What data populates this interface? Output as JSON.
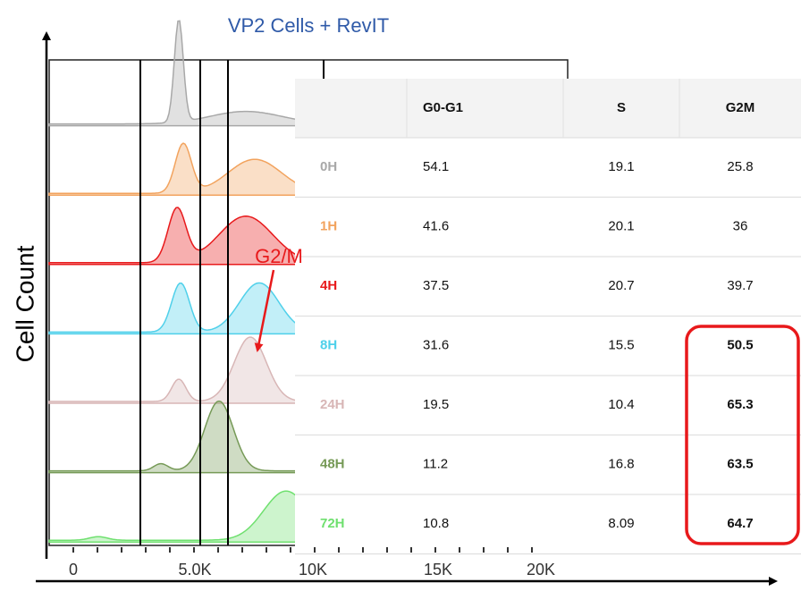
{
  "title": "VP2 Cells + RevIT",
  "y_axis_label": "Cell Count",
  "annotation": "G2/M",
  "x_ticks": [
    "0",
    "5.0K",
    "10K",
    "15K",
    "20K"
  ],
  "table": {
    "columns": [
      "G0-G1",
      "S",
      "G2M"
    ],
    "rows": [
      {
        "label": "0H",
        "color": "#a8a8a8",
        "values": [
          54.1,
          19.1,
          25.8
        ]
      },
      {
        "label": "1H",
        "color": "#f2a35e",
        "values": [
          41.6,
          20.1,
          36
        ]
      },
      {
        "label": "4H",
        "color": "#e8191b",
        "values": [
          37.5,
          20.7,
          39.7
        ]
      },
      {
        "label": "8H",
        "color": "#4fd0ea",
        "values": [
          31.6,
          15.5,
          50.5
        ]
      },
      {
        "label": "24H",
        "color": "#d8b6b6",
        "values": [
          19.5,
          10.4,
          65.3
        ]
      },
      {
        "label": "48H",
        "color": "#769a57",
        "values": [
          11.2,
          16.8,
          63.5
        ]
      },
      {
        "label": "72H",
        "color": "#6fe06f",
        "values": [
          10.8,
          8.09,
          64.7
        ]
      }
    ]
  }
}
